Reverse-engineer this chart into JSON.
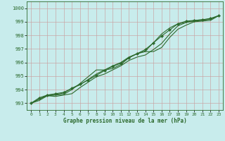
{
  "xlabel": "Graphe pression niveau de la mer (hPa)",
  "bg_color": "#c8ecec",
  "grid_color": "#b0c8c8",
  "line_color": "#2d6a2d",
  "xlim": [
    -0.5,
    23.5
  ],
  "ylim": [
    992.5,
    1000.5
  ],
  "yticks": [
    993,
    994,
    995,
    996,
    997,
    998,
    999,
    1000
  ],
  "xticks": [
    0,
    1,
    2,
    3,
    4,
    5,
    6,
    7,
    8,
    9,
    10,
    11,
    12,
    13,
    14,
    15,
    16,
    17,
    18,
    19,
    20,
    21,
    22,
    23
  ],
  "series": [
    [
      993.0,
      993.3,
      993.6,
      993.65,
      993.75,
      994.1,
      994.35,
      994.75,
      995.15,
      995.45,
      995.75,
      996.0,
      996.4,
      996.65,
      996.8,
      996.8,
      997.1,
      997.85,
      998.45,
      998.75,
      999.0,
      999.05,
      999.1,
      999.45
    ],
    [
      993.0,
      993.2,
      993.55,
      993.5,
      993.6,
      993.7,
      994.15,
      994.55,
      994.95,
      995.15,
      995.45,
      995.75,
      996.15,
      996.4,
      996.55,
      996.95,
      997.4,
      998.1,
      998.7,
      998.95,
      999.05,
      999.1,
      999.2,
      999.45
    ],
    [
      993.0,
      993.3,
      993.55,
      993.6,
      993.65,
      994.0,
      994.45,
      994.95,
      995.45,
      995.45,
      995.55,
      995.85,
      996.35,
      996.65,
      996.85,
      997.45,
      998.1,
      998.55,
      998.85,
      998.95,
      999.1,
      999.15,
      999.2,
      999.45
    ],
    [
      993.0,
      993.4,
      993.6,
      993.7,
      993.8,
      994.1,
      994.4,
      994.7,
      995.05,
      995.4,
      995.7,
      995.95,
      996.35,
      996.65,
      996.95,
      997.45,
      997.95,
      998.4,
      998.85,
      999.05,
      999.1,
      999.15,
      999.25,
      999.45
    ]
  ],
  "marker_series_idx": 3,
  "figsize": [
    3.2,
    2.0
  ],
  "dpi": 100
}
